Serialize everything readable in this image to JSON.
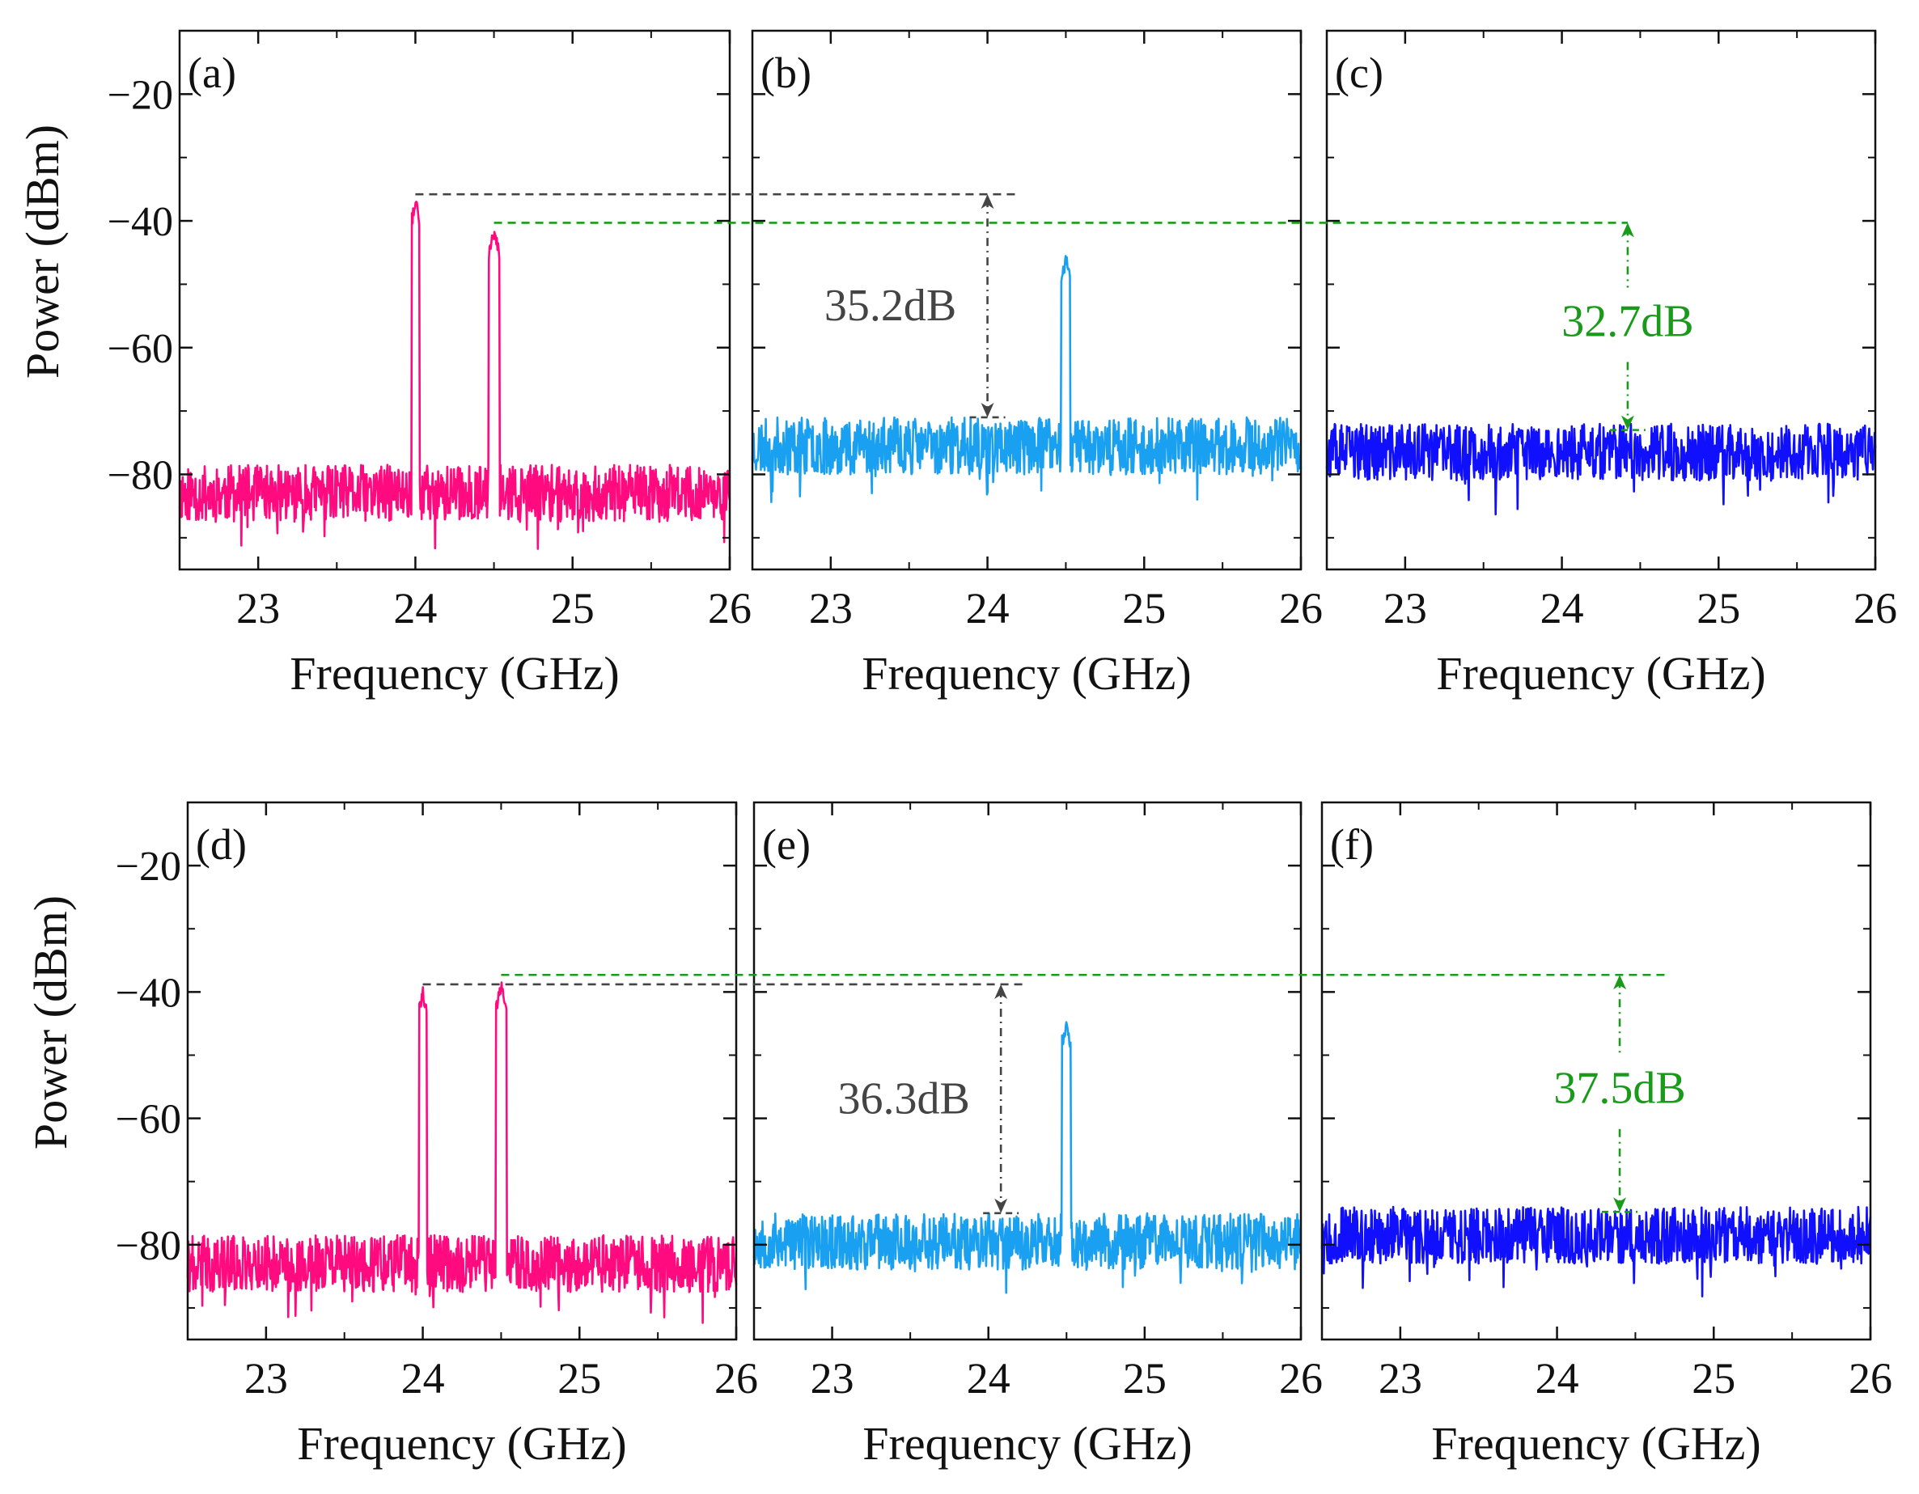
{
  "figure": {
    "xlabel": "Frequency (GHz)",
    "ylabel": "Power (dBm)",
    "x_ticks": [
      23,
      24,
      25,
      26
    ],
    "y_ticks": [
      -20,
      -40,
      -60,
      -80
    ],
    "y_tick_labels": [
      "−20",
      "−40",
      "−60",
      "−80"
    ],
    "colors": {
      "magenta": "#ff0a7f",
      "lightblue": "#1aa0f0",
      "blue": "#1010ff",
      "annotation_gray": "#444444",
      "annotation_green": "#1a9a1a"
    }
  },
  "chart_data": [
    {
      "id": "a",
      "type": "line",
      "panel_label": "(a)",
      "xlabel": "Frequency (GHz)",
      "ylabel": "Power (dBm)",
      "xlim": [
        22.5,
        26
      ],
      "ylim": [
        -95,
        -10
      ],
      "color": "#ff0a7f",
      "noise_floor": -83,
      "noise_amp": 4.5,
      "seed": 11,
      "peaks": [
        {
          "f": 24.0,
          "level": -36,
          "width": 0.05
        },
        {
          "f": 24.5,
          "level": -41,
          "width": 0.07
        }
      ]
    },
    {
      "id": "b",
      "type": "line",
      "panel_label": "(b)",
      "xlabel": "Frequency (GHz)",
      "ylabel": "",
      "xlim": [
        22.5,
        26
      ],
      "ylim": [
        -95,
        -10
      ],
      "color": "#1aa0f0",
      "noise_floor": -75.5,
      "noise_amp": 4.5,
      "seed": 23,
      "peaks": [
        {
          "f": 24.5,
          "level": -45,
          "width": 0.06
        }
      ],
      "annotation": {
        "text": "35.2dB",
        "x": 24.0,
        "y_top": -35.8,
        "y_bottom": -71,
        "color": "#444444"
      }
    },
    {
      "id": "c",
      "type": "line",
      "panel_label": "(c)",
      "xlabel": "Frequency (GHz)",
      "ylabel": "",
      "xlim": [
        22.5,
        26
      ],
      "ylim": [
        -95,
        -10
      ],
      "color": "#1010ff",
      "noise_floor": -76.5,
      "noise_amp": 4.5,
      "seed": 37,
      "peaks": [],
      "annotation": {
        "text": "32.7dB",
        "x": 24.42,
        "y_top": -40.3,
        "y_bottom": -73,
        "color": "#1a9a1a"
      }
    },
    {
      "id": "d",
      "type": "line",
      "panel_label": "(d)",
      "xlabel": "Frequency (GHz)",
      "ylabel": "Power (dBm)",
      "xlim": [
        22.5,
        26
      ],
      "ylim": [
        -95,
        -10
      ],
      "color": "#ff0a7f",
      "noise_floor": -83,
      "noise_amp": 4.5,
      "seed": 41,
      "peaks": [
        {
          "f": 24.0,
          "level": -39,
          "width": 0.05
        },
        {
          "f": 24.5,
          "level": -38,
          "width": 0.07
        }
      ]
    },
    {
      "id": "e",
      "type": "line",
      "panel_label": "(e)",
      "xlabel": "Frequency (GHz)",
      "ylabel": "",
      "xlim": [
        22.5,
        26
      ],
      "ylim": [
        -95,
        -10
      ],
      "color": "#1aa0f0",
      "noise_floor": -79.5,
      "noise_amp": 4.5,
      "seed": 53,
      "peaks": [
        {
          "f": 24.5,
          "level": -44,
          "width": 0.06
        }
      ],
      "annotation": {
        "text": "36.3dB",
        "x": 24.08,
        "y_top": -38.8,
        "y_bottom": -75,
        "color": "#444444"
      }
    },
    {
      "id": "f",
      "type": "line",
      "panel_label": "(f)",
      "xlabel": "Frequency (GHz)",
      "ylabel": "",
      "xlim": [
        22.5,
        26
      ],
      "ylim": [
        -95,
        -10
      ],
      "color": "#1010ff",
      "noise_floor": -78.5,
      "noise_amp": 4.5,
      "seed": 67,
      "peaks": [],
      "annotation": {
        "text": "37.5dB",
        "x": 24.4,
        "y_top": -37.3,
        "y_bottom": -74.8,
        "color": "#1a9a1a"
      }
    }
  ],
  "reference_lines": [
    {
      "row": 0,
      "color": "#444444",
      "level": -35.8,
      "x_from": 24.0,
      "panel_from": "a",
      "x_to": 24.2,
      "panel_to": "b"
    },
    {
      "row": 0,
      "color": "#1a9a1a",
      "level": -40.3,
      "x_from": 24.5,
      "panel_from": "a",
      "x_to": 24.42,
      "panel_to": "c"
    },
    {
      "row": 1,
      "color": "#444444",
      "level": -38.8,
      "x_from": 24.0,
      "panel_from": "d",
      "x_to": 24.25,
      "panel_to": "e"
    },
    {
      "row": 1,
      "color": "#1a9a1a",
      "level": -37.3,
      "x_from": 24.5,
      "panel_from": "d",
      "x_to": 24.7,
      "panel_to": "f"
    }
  ]
}
